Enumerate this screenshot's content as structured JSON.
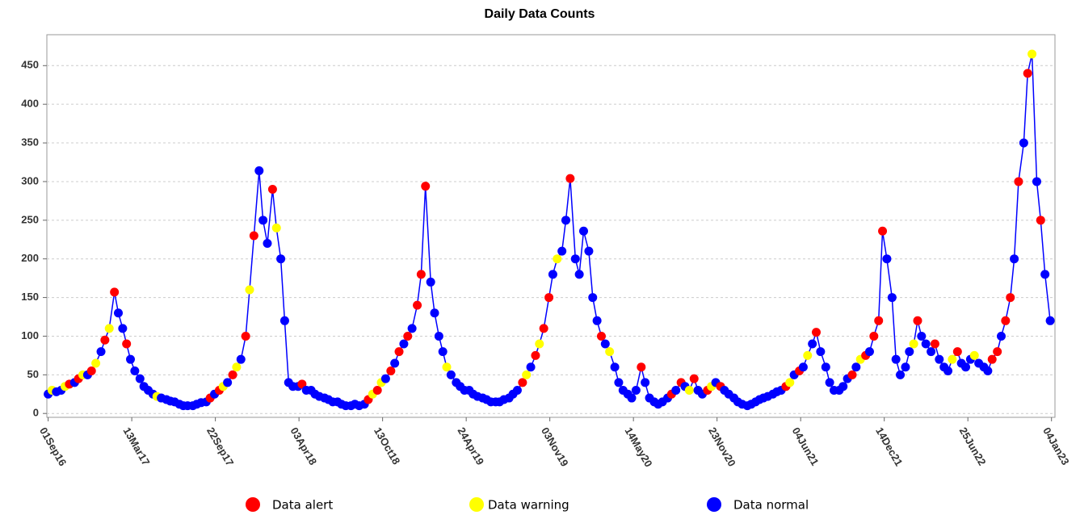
{
  "chart_data": {
    "type": "line",
    "title": "Daily Data Counts",
    "series": [
      {
        "name": "Data alert",
        "color": "#ff0000"
      },
      {
        "name": "Data warning",
        "color": "#ffff00"
      },
      {
        "name": "Data normal",
        "color": "#0000ff"
      }
    ],
    "line_color": "#0000ff",
    "x": [
      "2016-09-01",
      "2016-09-10",
      "2016-09-20",
      "2016-10-01",
      "2016-10-10",
      "2016-10-20",
      "2016-11-01",
      "2016-11-10",
      "2016-11-20",
      "2016-12-01",
      "2016-12-10",
      "2016-12-20",
      "2017-01-01",
      "2017-01-10",
      "2017-01-20",
      "2017-02-01",
      "2017-02-10",
      "2017-02-20",
      "2017-03-01",
      "2017-03-10",
      "2017-03-20",
      "2017-04-01",
      "2017-04-10",
      "2017-04-20",
      "2017-05-01",
      "2017-05-10",
      "2017-05-20",
      "2017-06-01",
      "2017-06-10",
      "2017-06-20",
      "2017-07-01",
      "2017-07-10",
      "2017-07-20",
      "2017-08-01",
      "2017-08-10",
      "2017-08-20",
      "2017-09-01",
      "2017-09-10",
      "2017-09-20",
      "2017-10-01",
      "2017-10-10",
      "2017-10-20",
      "2017-11-01",
      "2017-11-10",
      "2017-11-20",
      "2017-12-01",
      "2017-12-10",
      "2017-12-20",
      "2018-01-01",
      "2018-01-10",
      "2018-01-20",
      "2018-02-01",
      "2018-02-10",
      "2018-02-20",
      "2018-03-01",
      "2018-03-10",
      "2018-03-20",
      "2018-04-01",
      "2018-04-10",
      "2018-04-20",
      "2018-05-01",
      "2018-05-10",
      "2018-05-20",
      "2018-06-01",
      "2018-06-10",
      "2018-06-20",
      "2018-07-01",
      "2018-07-10",
      "2018-07-20",
      "2018-08-01",
      "2018-08-10",
      "2018-08-20",
      "2018-09-01",
      "2018-09-10",
      "2018-09-20",
      "2018-10-01",
      "2018-10-10",
      "2018-10-20",
      "2018-11-01",
      "2018-11-10",
      "2018-11-20",
      "2018-12-01",
      "2018-12-10",
      "2018-12-20",
      "2019-01-01",
      "2019-01-10",
      "2019-01-20",
      "2019-02-01",
      "2019-02-10",
      "2019-02-20",
      "2019-03-01",
      "2019-03-10",
      "2019-03-20",
      "2019-04-01",
      "2019-04-10",
      "2019-04-20",
      "2019-05-01",
      "2019-05-10",
      "2019-05-20",
      "2019-06-01",
      "2019-06-10",
      "2019-06-20",
      "2019-07-01",
      "2019-07-10",
      "2019-07-20",
      "2019-08-01",
      "2019-08-10",
      "2019-08-20",
      "2019-09-01",
      "2019-09-10",
      "2019-09-20",
      "2019-10-01",
      "2019-10-10",
      "2019-10-20",
      "2019-11-01",
      "2019-11-10",
      "2019-11-20",
      "2019-12-01",
      "2019-12-10",
      "2019-12-20",
      "2020-01-01",
      "2020-01-10",
      "2020-01-20",
      "2020-02-01",
      "2020-02-10",
      "2020-02-20",
      "2020-03-01",
      "2020-03-10",
      "2020-03-20",
      "2020-04-01",
      "2020-04-10",
      "2020-04-20",
      "2020-05-01",
      "2020-05-10",
      "2020-05-20",
      "2020-06-01",
      "2020-06-10",
      "2020-06-20",
      "2020-07-01",
      "2020-07-10",
      "2020-07-20",
      "2020-08-01",
      "2020-08-10",
      "2020-08-20",
      "2020-09-01",
      "2020-09-10",
      "2020-09-20",
      "2020-10-01",
      "2020-10-10",
      "2020-10-20",
      "2020-11-01",
      "2020-11-10",
      "2020-11-20",
      "2020-12-01",
      "2020-12-10",
      "2020-12-20",
      "2021-01-01",
      "2021-01-10",
      "2021-01-20",
      "2021-02-01",
      "2021-02-10",
      "2021-02-20",
      "2021-03-01",
      "2021-03-10",
      "2021-03-20",
      "2021-04-01",
      "2021-04-10",
      "2021-04-20",
      "2021-05-01",
      "2021-05-10",
      "2021-05-20",
      "2021-06-01",
      "2021-06-10",
      "2021-06-20",
      "2021-07-01",
      "2021-07-10",
      "2021-07-20",
      "2021-08-01",
      "2021-08-10",
      "2021-08-20",
      "2021-09-01",
      "2021-09-10",
      "2021-09-20",
      "2021-10-01",
      "2021-10-10",
      "2021-10-20",
      "2021-11-01",
      "2021-11-10",
      "2021-11-20",
      "2021-12-01",
      "2021-12-10",
      "2021-12-20",
      "2022-01-01",
      "2022-01-10",
      "2022-01-20",
      "2022-02-01",
      "2022-02-10",
      "2022-02-20",
      "2022-03-01",
      "2022-03-10",
      "2022-03-20",
      "2022-04-01",
      "2022-04-10",
      "2022-04-20",
      "2022-05-01",
      "2022-05-10",
      "2022-05-20",
      "2022-06-01",
      "2022-06-10",
      "2022-06-20",
      "2022-07-01",
      "2022-07-10",
      "2022-07-20",
      "2022-08-01",
      "2022-08-10",
      "2022-08-20",
      "2022-09-01",
      "2022-09-10",
      "2022-09-20",
      "2022-10-01",
      "2022-10-10",
      "2022-10-20",
      "2022-11-01",
      "2022-11-10",
      "2022-11-20",
      "2022-12-01",
      "2022-12-10",
      "2022-12-20",
      "2023-01-01"
    ],
    "values": [
      25,
      30,
      28,
      30,
      35,
      38,
      40,
      45,
      50,
      50,
      55,
      65,
      80,
      95,
      110,
      157,
      130,
      110,
      90,
      70,
      55,
      45,
      35,
      30,
      25,
      22,
      20,
      18,
      16,
      15,
      12,
      10,
      10,
      10,
      12,
      14,
      15,
      20,
      25,
      30,
      35,
      40,
      50,
      60,
      70,
      100,
      160,
      230,
      314,
      250,
      220,
      290,
      240,
      200,
      120,
      40,
      35,
      35,
      38,
      30,
      30,
      25,
      22,
      20,
      18,
      15,
      15,
      12,
      10,
      10,
      12,
      10,
      12,
      18,
      25,
      30,
      40,
      45,
      55,
      65,
      80,
      90,
      100,
      110,
      140,
      180,
      294,
      170,
      130,
      100,
      80,
      60,
      50,
      40,
      35,
      30,
      30,
      25,
      22,
      20,
      18,
      15,
      15,
      15,
      18,
      20,
      25,
      30,
      40,
      50,
      60,
      75,
      90,
      110,
      150,
      180,
      200,
      210,
      250,
      304,
      200,
      180,
      236,
      210,
      150,
      120,
      100,
      90,
      80,
      60,
      40,
      30,
      25,
      20,
      30,
      60,
      40,
      20,
      15,
      12,
      15,
      20,
      25,
      30,
      40,
      35,
      30,
      45,
      30,
      25,
      30,
      35,
      40,
      35,
      30,
      25,
      20,
      15,
      12,
      10,
      12,
      15,
      18,
      20,
      22,
      25,
      28,
      30,
      35,
      40,
      50,
      55,
      60,
      75,
      90,
      105,
      80,
      60,
      40,
      30,
      30,
      35,
      45,
      50,
      60,
      70,
      75,
      80,
      100,
      120,
      236,
      200,
      150,
      70,
      50,
      60,
      80,
      90,
      120,
      100,
      90,
      80,
      90,
      70,
      60,
      55,
      70,
      80,
      65,
      60,
      70,
      75,
      65,
      60,
      55,
      70,
      80,
      100,
      120,
      150,
      200,
      300,
      350,
      440,
      465,
      300,
      250,
      180,
      120
    ],
    "levels": [
      2,
      1,
      2,
      2,
      1,
      0,
      2,
      0,
      1,
      2,
      0,
      1,
      2,
      0,
      1,
      0,
      2,
      2,
      0,
      2,
      2,
      2,
      2,
      2,
      2,
      1,
      2,
      2,
      2,
      2,
      2,
      2,
      2,
      2,
      2,
      2,
      2,
      0,
      2,
      0,
      1,
      2,
      0,
      1,
      2,
      0,
      1,
      0,
      2,
      2,
      2,
      0,
      1,
      2,
      2,
      2,
      2,
      2,
      0,
      2,
      2,
      2,
      2,
      2,
      2,
      2,
      2,
      2,
      2,
      2,
      2,
      2,
      2,
      0,
      1,
      0,
      1,
      2,
      0,
      2,
      0,
      2,
      0,
      2,
      0,
      0,
      0,
      2,
      2,
      2,
      2,
      1,
      2,
      2,
      2,
      2,
      2,
      2,
      2,
      2,
      2,
      2,
      2,
      2,
      2,
      2,
      2,
      2,
      0,
      1,
      2,
      0,
      1,
      0,
      0,
      2,
      1,
      2,
      2,
      0,
      2,
      2,
      2,
      2,
      2,
      2,
      0,
      2,
      1,
      2,
      2,
      2,
      2,
      2,
      2,
      0,
      2,
      2,
      2,
      2,
      2,
      2,
      0,
      2,
      0,
      2,
      1,
      0,
      2,
      2,
      0,
      1,
      2,
      0,
      2,
      2,
      2,
      2,
      2,
      2,
      2,
      2,
      2,
      2,
      2,
      2,
      2,
      2,
      0,
      1,
      2,
      0,
      2,
      1,
      2,
      0,
      2,
      2,
      2,
      2,
      2,
      2,
      2,
      0,
      2,
      1,
      0,
      2,
      0,
      0,
      0,
      2,
      2,
      2,
      2,
      2,
      2,
      1,
      0,
      2,
      2,
      2,
      0,
      2,
      2,
      2,
      1,
      0,
      2,
      2,
      2,
      1,
      2,
      2,
      2,
      0,
      0,
      2,
      0,
      0,
      2,
      0,
      2,
      0,
      1,
      2,
      0,
      2,
      2
    ],
    "xlim": [
      "2016-08-29",
      "2023-01-12"
    ],
    "ylim": [
      -5,
      490
    ],
    "yticks": [
      0,
      50,
      100,
      150,
      200,
      250,
      300,
      350,
      400,
      450
    ],
    "xticks": [
      {
        "value": "2016-09-01",
        "label": "01Sep16"
      },
      {
        "value": "2017-03-13",
        "label": "13Mar17"
      },
      {
        "value": "2017-09-22",
        "label": "22Sep17"
      },
      {
        "value": "2018-04-03",
        "label": "03Apr18"
      },
      {
        "value": "2018-10-13",
        "label": "13Oct18"
      },
      {
        "value": "2019-04-24",
        "label": "24Apr19"
      },
      {
        "value": "2019-11-03",
        "label": "03Nov19"
      },
      {
        "value": "2020-05-14",
        "label": "14May20"
      },
      {
        "value": "2020-11-23",
        "label": "23Nov20"
      },
      {
        "value": "2021-06-04",
        "label": "04Jun21"
      },
      {
        "value": "2021-12-14",
        "label": "14Dec21"
      },
      {
        "value": "2022-06-25",
        "label": "25Jun22"
      },
      {
        "value": "2023-01-04",
        "label": "04Jan23"
      }
    ],
    "grid": true
  }
}
